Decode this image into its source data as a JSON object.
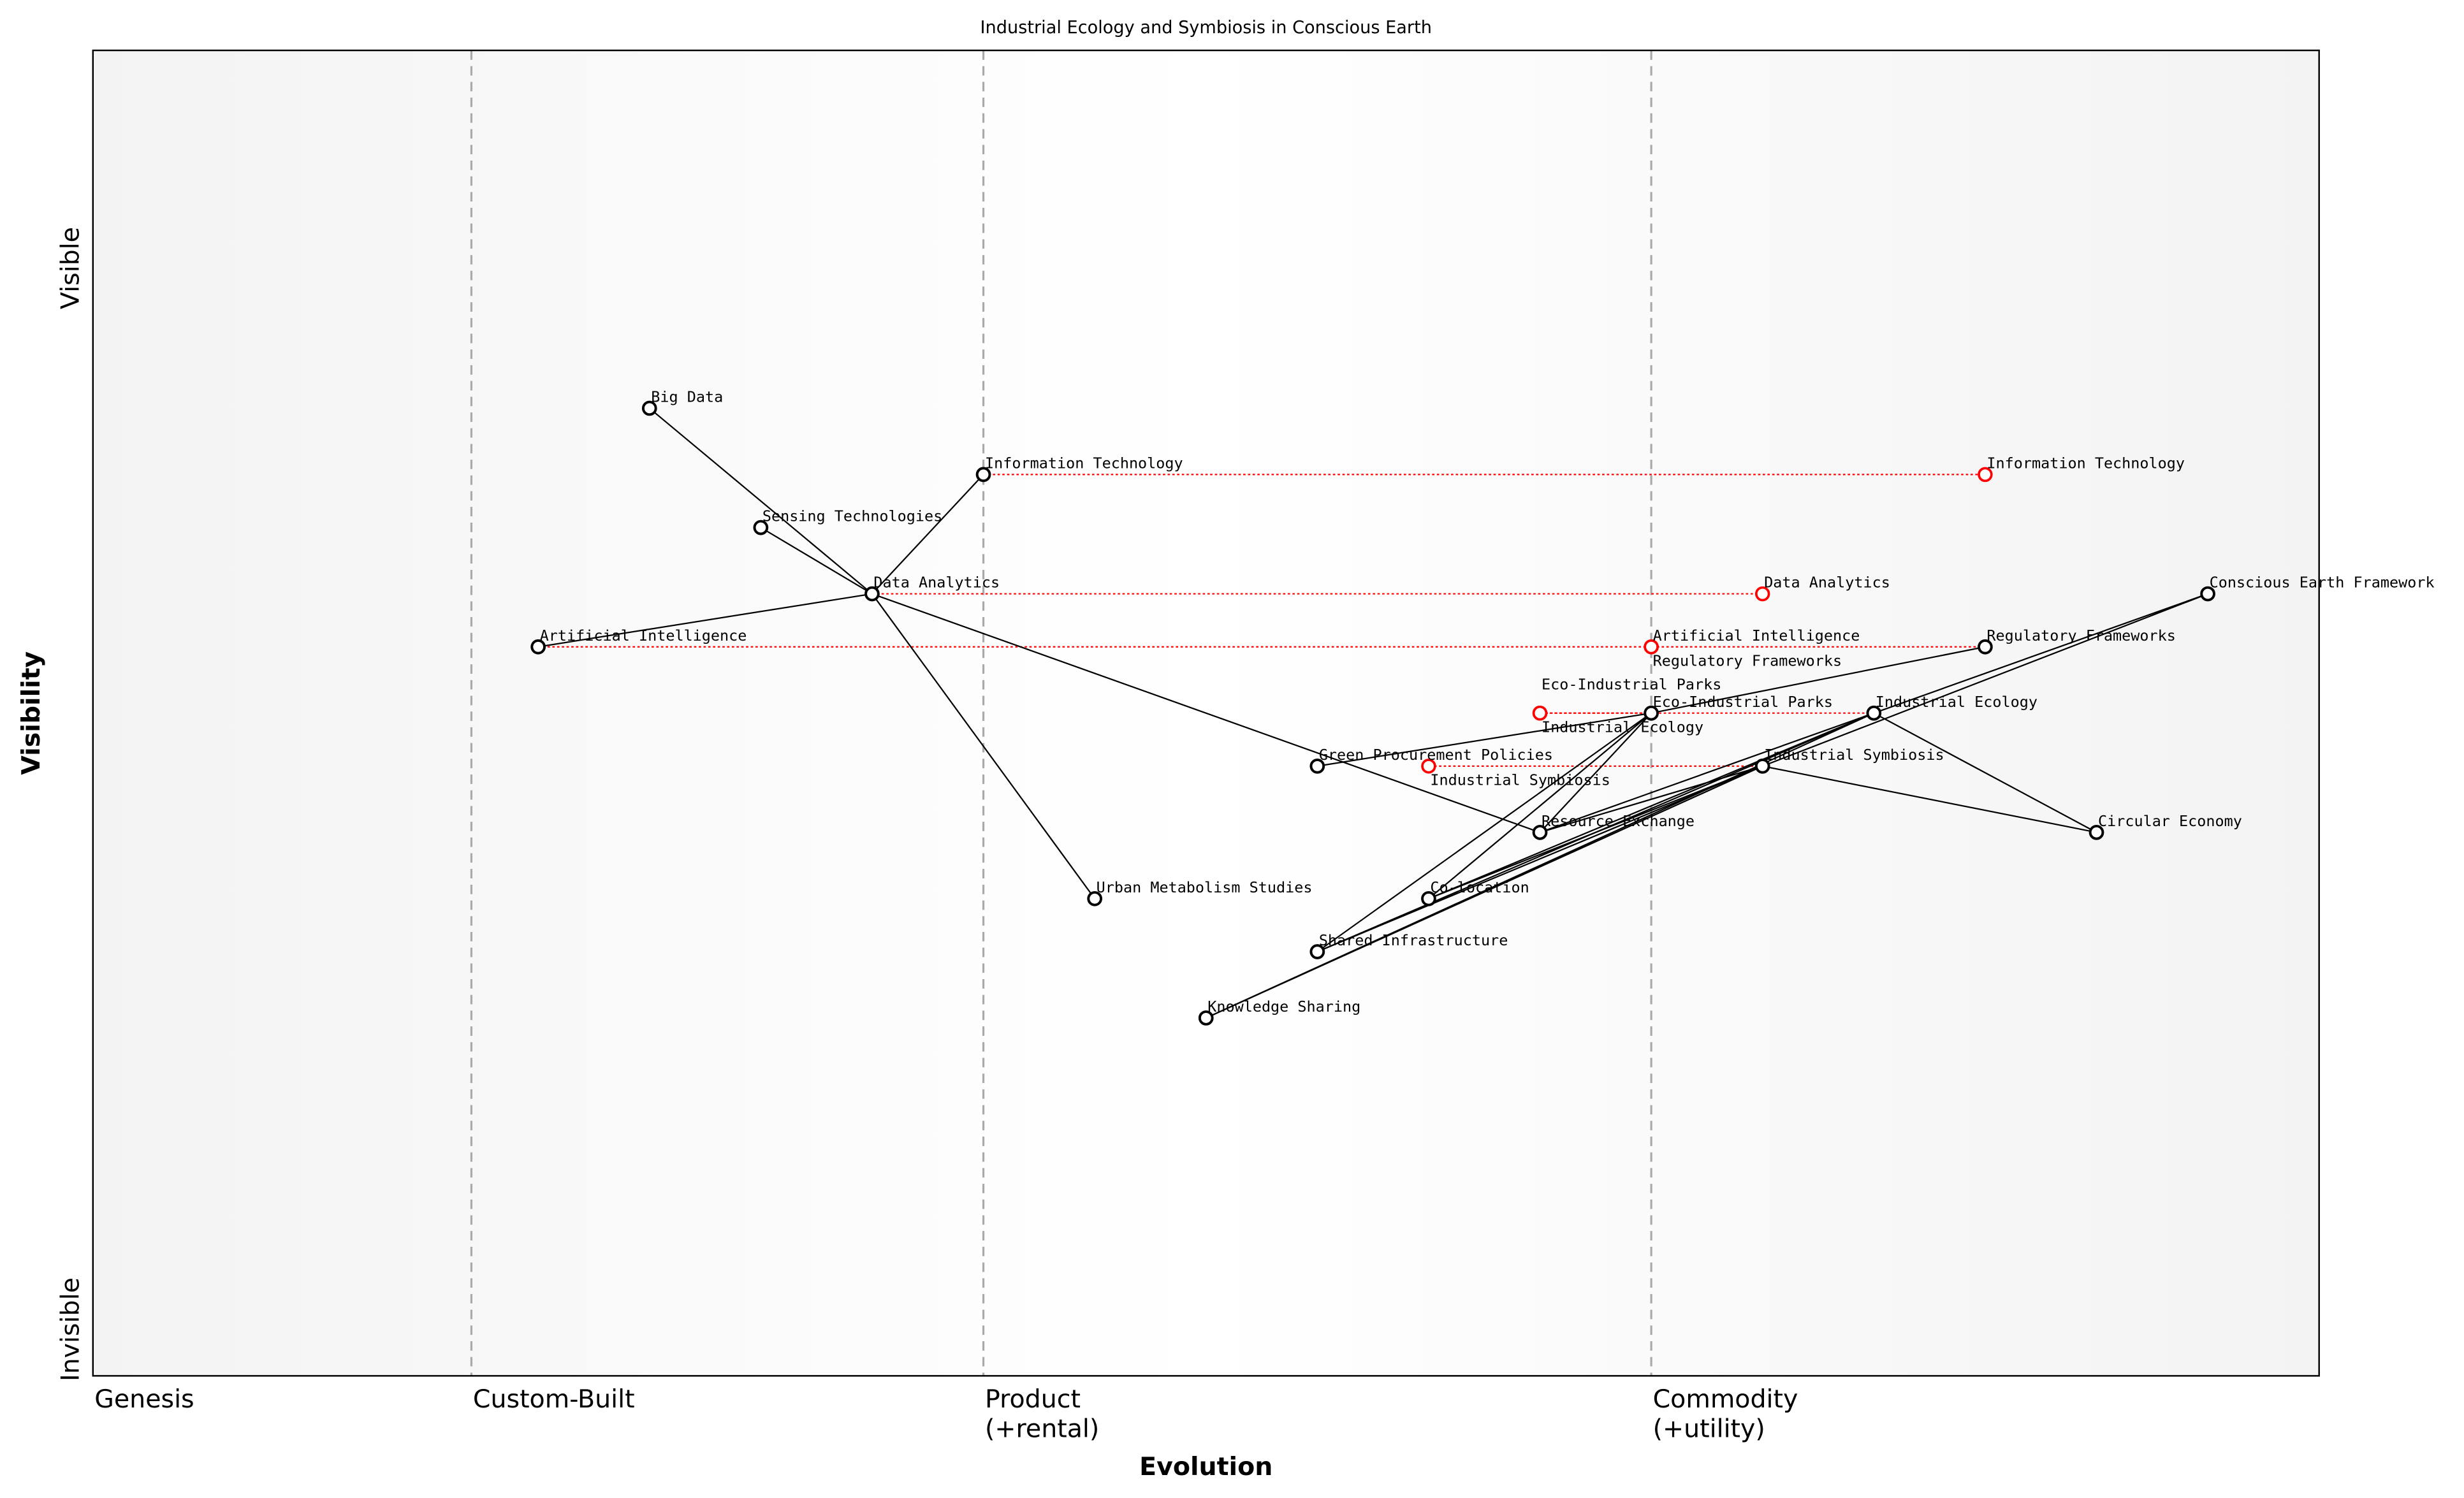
{
  "chart_data": {
    "type": "scatter",
    "subtype": "wardley-map",
    "title": "Industrial Ecology and Symbiosis in Conscious Earth",
    "xlabel": "Evolution",
    "ylabel": "Visibility",
    "xlim": [
      0,
      1
    ],
    "ylim": [
      0,
      1
    ],
    "grid": false,
    "x_ticks": [
      {
        "value": 0,
        "label": "Genesis"
      },
      {
        "value": 0.17,
        "label": "Custom-Built"
      },
      {
        "value": 0.4,
        "label": "Product\n(+rental)"
      },
      {
        "value": 0.7,
        "label": "Commodity\n(+utility)"
      }
    ],
    "stage_lines": [
      0.17,
      0.4,
      0.7
    ],
    "y_ticks": [
      {
        "value": 0.85,
        "label": "Visible"
      },
      {
        "value": 0.0,
        "label": "Invisible"
      }
    ],
    "colors": {
      "node": "#000000",
      "evolved": "#ff0000",
      "link": "#000000",
      "stage_line": "#aaaaaa",
      "band": "#f5f5f5"
    },
    "components": [
      {
        "name": "Big Data",
        "evolution": 0.25,
        "visibility": 0.73
      },
      {
        "name": "Information Technology",
        "evolution": 0.4,
        "visibility": 0.68
      },
      {
        "name": "Sensing Technologies",
        "evolution": 0.3,
        "visibility": 0.64
      },
      {
        "name": "Data Analytics",
        "evolution": 0.35,
        "visibility": 0.59
      },
      {
        "name": "Artificial Intelligence",
        "evolution": 0.2,
        "visibility": 0.55
      },
      {
        "name": "Green Procurement Policies",
        "evolution": 0.55,
        "visibility": 0.46
      },
      {
        "name": "Resource Exchange",
        "evolution": 0.65,
        "visibility": 0.41
      },
      {
        "name": "Urban Metabolism Studies",
        "evolution": 0.45,
        "visibility": 0.36
      },
      {
        "name": "Co-location",
        "evolution": 0.6,
        "visibility": 0.36
      },
      {
        "name": "Shared Infrastructure",
        "evolution": 0.55,
        "visibility": 0.32
      },
      {
        "name": "Knowledge Sharing",
        "evolution": 0.5,
        "visibility": 0.27
      },
      {
        "name": "Eco-Industrial Parks",
        "evolution": 0.7,
        "visibility": 0.5
      },
      {
        "name": "Industrial Ecology",
        "evolution": 0.8,
        "visibility": 0.5
      },
      {
        "name": "Industrial Symbiosis",
        "evolution": 0.75,
        "visibility": 0.46
      },
      {
        "name": "Regulatory Frameworks",
        "evolution": 0.85,
        "visibility": 0.55
      },
      {
        "name": "Conscious Earth Framework",
        "evolution": 0.95,
        "visibility": 0.59
      },
      {
        "name": "Circular Economy",
        "evolution": 0.9,
        "visibility": 0.41
      }
    ],
    "evolutions": [
      {
        "name": "Information Technology",
        "from": 0.4,
        "to": 0.85,
        "visibility": 0.68
      },
      {
        "name": "Data Analytics",
        "from": 0.35,
        "to": 0.75,
        "visibility": 0.59
      },
      {
        "name": "Artificial Intelligence",
        "from": 0.2,
        "to": 0.7,
        "visibility": 0.55
      },
      {
        "name": "Regulatory Frameworks",
        "from": 0.85,
        "to": 0.7,
        "visibility": 0.55
      },
      {
        "name": "Industrial Ecology",
        "from": 0.8,
        "to": 0.65,
        "visibility": 0.5
      },
      {
        "name": "Eco-Industrial Parks",
        "from": 0.7,
        "to": 0.65,
        "visibility": 0.5
      },
      {
        "name": "Industrial Symbiosis",
        "from": 0.75,
        "to": 0.6,
        "visibility": 0.46
      }
    ],
    "links": [
      [
        "Data Analytics",
        "Big Data"
      ],
      [
        "Data Analytics",
        "Sensing Technologies"
      ],
      [
        "Data Analytics",
        "Information Technology"
      ],
      [
        "Data Analytics",
        "Artificial Intelligence"
      ],
      [
        "Data Analytics",
        "Urban Metabolism Studies"
      ],
      [
        "Data Analytics",
        "Resource Exchange"
      ],
      [
        "Eco-Industrial Parks",
        "Green Procurement Policies"
      ],
      [
        "Eco-Industrial Parks",
        "Regulatory Frameworks"
      ],
      [
        "Eco-Industrial Parks",
        "Co-location"
      ],
      [
        "Eco-Industrial Parks",
        "Shared Infrastructure"
      ],
      [
        "Eco-Industrial Parks",
        "Resource Exchange"
      ],
      [
        "Industrial Ecology",
        "Circular Economy"
      ],
      [
        "Industrial Ecology",
        "Resource Exchange"
      ],
      [
        "Industrial Ecology",
        "Co-location"
      ],
      [
        "Industrial Ecology",
        "Shared Infrastructure"
      ],
      [
        "Industrial Ecology",
        "Knowledge Sharing"
      ],
      [
        "Industrial Ecology",
        "Conscious Earth Framework"
      ],
      [
        "Industrial Symbiosis",
        "Circular Economy"
      ],
      [
        "Industrial Symbiosis",
        "Resource Exchange"
      ],
      [
        "Industrial Symbiosis",
        "Co-location"
      ],
      [
        "Industrial Symbiosis",
        "Shared Infrastructure"
      ],
      [
        "Industrial Symbiosis",
        "Knowledge Sharing"
      ],
      [
        "Industrial Symbiosis",
        "Conscious Earth Framework"
      ]
    ]
  }
}
